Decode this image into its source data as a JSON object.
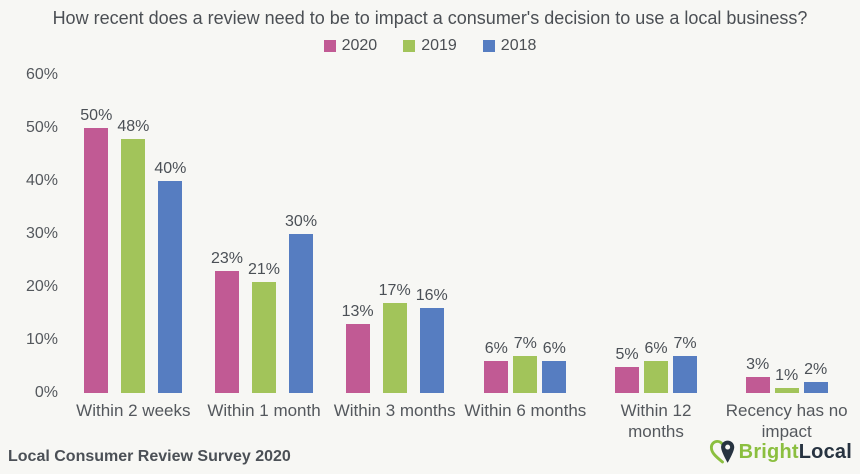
{
  "title": "How recent does a review need to be to impact a consumer's decision to use a local business?",
  "footer": {
    "source": "Local Consumer Review Survey 2020",
    "brand": {
      "part1": "Bright",
      "part2": "Local",
      "icon": "heart-map-pin-icon"
    }
  },
  "colors": {
    "background": "#f7f7f4",
    "text": "#4b4f54",
    "axis_text": "#54585d",
    "brand_green": "#8bbf3f",
    "brand_navy": "#273340"
  },
  "chart_data": {
    "type": "bar",
    "title": "How recent does a review need to be to impact a consumer's decision to use a local business?",
    "categories": [
      "Within 2 weeks",
      "Within 1 month",
      "Within 3 months",
      "Within 6 months",
      "Within 12 months",
      "Recency has no impact"
    ],
    "series": [
      {
        "name": "2020",
        "color": "#c15a94",
        "values": [
          50,
          23,
          13,
          6,
          5,
          3
        ]
      },
      {
        "name": "2019",
        "color": "#a2c45a",
        "values": [
          48,
          21,
          17,
          7,
          6,
          1
        ]
      },
      {
        "name": "2018",
        "color": "#567dc1",
        "values": [
          40,
          30,
          16,
          6,
          7,
          2
        ]
      }
    ],
    "xlabel": "",
    "ylabel": "",
    "ylim": [
      0,
      60
    ],
    "yticks": [
      0,
      10,
      20,
      30,
      40,
      50,
      60
    ],
    "ytick_suffix": "%",
    "value_label_suffix": "%",
    "grid": false,
    "legend_position": "top"
  }
}
